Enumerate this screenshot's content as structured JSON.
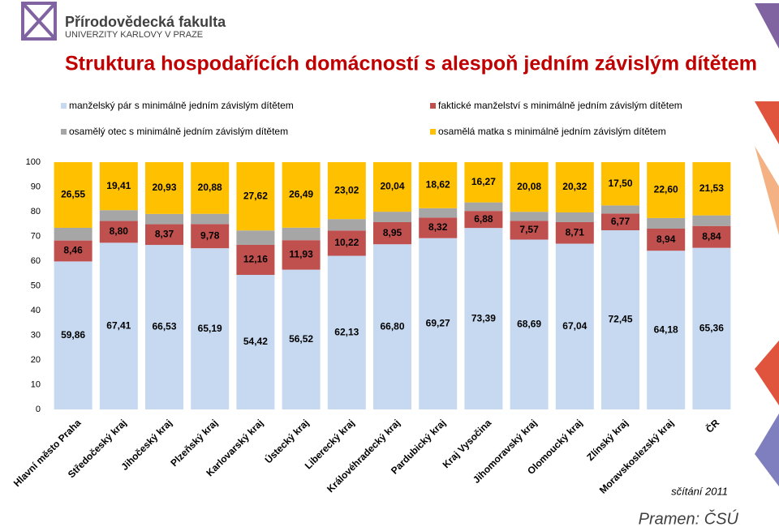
{
  "header": {
    "faculty": "Přírodovědecká fakulta",
    "university": "UNIVERZITY KARLOVY V PRAZE"
  },
  "chart_data": {
    "type": "stacked-bar",
    "title": "Struktura hospodařících domácností s alespoň jedním závislým dítětem",
    "categories": [
      "Hlavní město Praha",
      "Středočeský kraj",
      "Jihočeský kraj",
      "Plzeňský kraj",
      "Karlovarský kraj",
      "Ústecký kraj",
      "Liberecký kraj",
      "Královéhradecký kraj",
      "Pardubický kraj",
      "Kraj Vysočina",
      "Jihomoravský kraj",
      "Olomoucký kraj",
      "Zlínský kraj",
      "Moravskoslezský kraj",
      "ČR"
    ],
    "series": [
      {
        "name": "manželský pár s minimálně jedním závislým dítětem",
        "color": "#c6d9f1",
        "values": [
          59.86,
          67.41,
          66.53,
          65.19,
          54.42,
          56.52,
          62.13,
          66.8,
          69.27,
          73.39,
          68.69,
          67.04,
          72.45,
          64.18,
          65.36
        ],
        "value_labels": [
          "59,86",
          "67,41",
          "66,53",
          "65,19",
          "54,42",
          "56,52",
          "62,13",
          "66,80",
          "69,27",
          "73,39",
          "68,69",
          "67,04",
          "72,45",
          "64,18",
          "65,36"
        ]
      },
      {
        "name": "faktické manželství s minimálně jedním závislým dítětem",
        "color": "#c0504d",
        "values": [
          8.46,
          8.8,
          8.37,
          9.78,
          12.16,
          11.93,
          10.22,
          8.95,
          8.32,
          6.88,
          7.57,
          8.71,
          6.77,
          8.94,
          8.84
        ],
        "value_labels": [
          "8,46",
          "8,80",
          "8,37",
          "9,78",
          "12,16",
          "11,93",
          "10,22",
          "8,95",
          "8,32",
          "6,88",
          "7,57",
          "8,71",
          "6,77",
          "8,94",
          "8,84"
        ]
      },
      {
        "name": "osamělý otec s minimálně jedním závislým dítětem",
        "color": "#a6a6a6",
        "values": [
          5.13,
          4.38,
          4.17,
          4.15,
          5.8,
          5.06,
          4.63,
          4.21,
          3.79,
          3.46,
          3.66,
          3.93,
          3.28,
          4.28,
          4.27
        ]
      },
      {
        "name": "osamělá matka s minimálně jedním závislým dítětem",
        "color": "#ffc000",
        "values": [
          26.55,
          19.41,
          20.93,
          20.88,
          27.62,
          26.49,
          23.02,
          20.04,
          18.62,
          16.27,
          20.08,
          20.32,
          17.5,
          22.6,
          21.53
        ],
        "value_labels": [
          "26,55",
          "19,41",
          "20,93",
          "20,88",
          "27,62",
          "26,49",
          "23,02",
          "20,04",
          "18,62",
          "16,27",
          "20,08",
          "20,32",
          "17,50",
          "22,60",
          "21,53"
        ]
      }
    ],
    "ylim": [
      0,
      100
    ],
    "yticks": [
      0,
      10,
      20,
      30,
      40,
      50,
      60,
      70,
      80,
      90,
      100
    ],
    "note": "sčítání 2011",
    "source": "Pramen: ČSÚ"
  }
}
